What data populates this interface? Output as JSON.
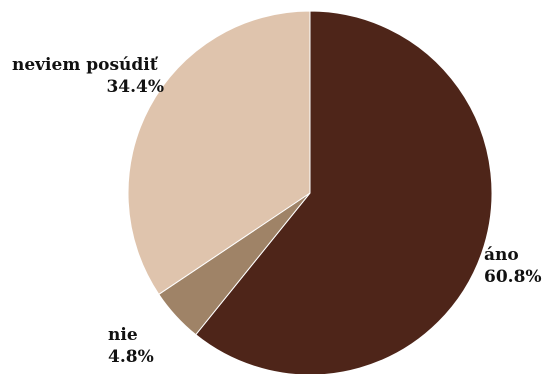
{
  "chart_data": {
    "type": "pie",
    "start_angle_deg": 0,
    "direction": "clockwise",
    "slices": [
      {
        "label": "áno",
        "value": 60.8,
        "value_label": "60.8%",
        "color": "#4e2519"
      },
      {
        "label": "nie",
        "value": 4.8,
        "value_label": "4.8%",
        "color": "#9f8367"
      },
      {
        "label": "neviem posúdiť",
        "value": 34.4,
        "value_label": "34.4%",
        "color": "#dfc4ad"
      }
    ]
  }
}
